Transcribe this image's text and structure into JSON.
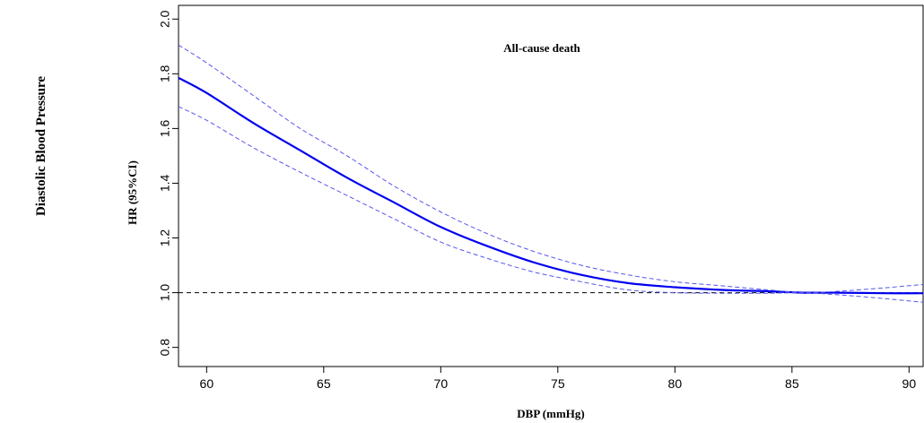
{
  "figure": {
    "side_label": "Diastolic Blood Pressure"
  },
  "chart_data": {
    "type": "line",
    "title": "All-cause death",
    "xlabel": "DBP (mmHg)",
    "ylabel": "HR (95%CI)",
    "xlim": [
      58.8,
      90.6
    ],
    "ylim": [
      0.73,
      2.05
    ],
    "x_ticks": [
      60,
      65,
      70,
      75,
      80,
      85,
      90
    ],
    "y_ticks": [
      0.8,
      1.0,
      1.2,
      1.4,
      1.6,
      1.8,
      2.0
    ],
    "reference_line": {
      "y": 1.0,
      "style": "dashed",
      "color": "#000000"
    },
    "grid": false,
    "x": [
      58.8,
      60,
      62,
      64,
      66,
      68,
      70,
      72,
      74,
      76,
      78,
      80,
      82,
      84,
      85.5,
      87,
      89,
      90.6
    ],
    "series": [
      {
        "role": "estimate",
        "color": "#0000ee",
        "style": "solid",
        "values": [
          1.785,
          1.73,
          1.62,
          1.52,
          1.42,
          1.33,
          1.24,
          1.17,
          1.11,
          1.065,
          1.035,
          1.02,
          1.01,
          1.005,
          1.0,
          1.0,
          0.998,
          0.998
        ]
      },
      {
        "role": "upper_ci",
        "color": "#5555ee",
        "style": "dashed",
        "values": [
          1.905,
          1.84,
          1.72,
          1.6,
          1.5,
          1.39,
          1.295,
          1.215,
          1.15,
          1.1,
          1.065,
          1.04,
          1.025,
          1.01,
          1.0,
          1.005,
          1.018,
          1.03
        ]
      },
      {
        "role": "lower_ci",
        "color": "#5555ee",
        "style": "dashed",
        "values": [
          1.68,
          1.63,
          1.53,
          1.44,
          1.355,
          1.27,
          1.185,
          1.125,
          1.075,
          1.04,
          1.01,
          1.0,
          0.998,
          0.998,
          1.0,
          0.992,
          0.978,
          0.965
        ]
      }
    ]
  }
}
